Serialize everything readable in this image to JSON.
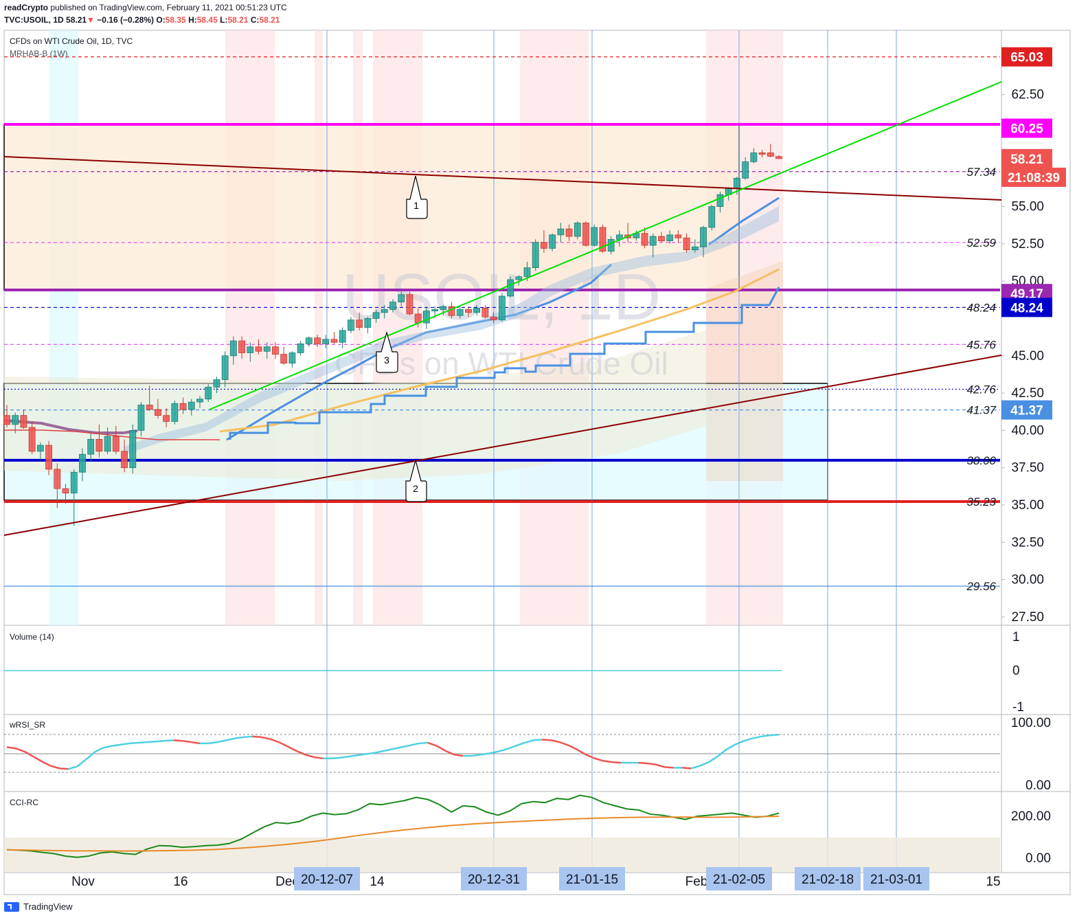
{
  "header": {
    "publisher": "readCrypto",
    "published_on": "published on TradingView.com, February 11, 2021 00:51:23 UTC",
    "symbol": "TVC:USOIL, 1D",
    "last": "58.21",
    "change_arrow": "▼",
    "change": "−0.16 (−0.28%)",
    "ohlc_o_label": "O:",
    "ohlc_o": "58.35",
    "ohlc_h_label": "H:",
    "ohlc_h": "58.45",
    "ohlc_l_label": "L:",
    "ohlc_l": "58.21",
    "ohlc_c_label": "C:",
    "ohlc_c": "58.21"
  },
  "main_legend": {
    "title": "CFDs on WTI Crude Oil, 1D, TVC",
    "indicator": "MRHAB-B (1W)"
  },
  "watermark": {
    "symbol": "USOIL, 1D",
    "name": "CFDs on WTI Crude Oil"
  },
  "colors": {
    "up": "#26a69a",
    "down": "#ef5350",
    "trendline": "#8b0000",
    "green_line": "#00e000",
    "ma_blue": "#4a90e2",
    "ma_orange": "#f5b942",
    "magenta": "#ff00ff",
    "purple": "#9c27b0",
    "navy": "#0000cc",
    "red": "#e02020",
    "box_fill": "#fdebd6",
    "cyan_fill": "#e0fbff"
  },
  "chart_data": [
    {
      "type": "candlestick",
      "title": "CFDs on WTI Crude Oil, 1D, TVC",
      "y_axis_ticks": [
        "62.50",
        "55.00",
        "52.50",
        "50.00",
        "45.00",
        "42.50",
        "40.00",
        "37.50",
        "35.00",
        "32.50",
        "30.00",
        "27.50"
      ],
      "ylim": [
        26.5,
        66.5
      ],
      "x_axis_ticks": [
        "Nov",
        "16",
        "Dec",
        "14",
        "Feb",
        "15"
      ],
      "x_axis_highlighted": [
        "20-12-07",
        "20-12-31",
        "21-01-15",
        "21-02-05",
        "21-02-18",
        "21-03-01"
      ],
      "price_badges": [
        {
          "label": "65.03",
          "value": 65.03,
          "color": "#e02020"
        },
        {
          "label": "60.25",
          "value": 60.25,
          "color": "#ff00ff"
        },
        {
          "label": "58.21",
          "value": 58.21,
          "color": "#ef5350"
        },
        {
          "label": "21:08:39",
          "value": 55.9,
          "color": "#ef5350"
        },
        {
          "label": "49.17",
          "value": 49.17,
          "color": "#9c27b0"
        },
        {
          "label": "48.24",
          "value": 48.24,
          "color": "#0000cc"
        },
        {
          "label": "41.37",
          "value": 41.37,
          "color": "#4a90e2"
        }
      ],
      "horizontal_levels": [
        {
          "label": "",
          "value": 65.03,
          "style": "dashed",
          "color": "#e02020"
        },
        {
          "label": "57.34",
          "value": 57.34,
          "style": "dashed",
          "color": "#9c27b0"
        },
        {
          "label": "52.59",
          "value": 52.59,
          "style": "dashed",
          "color": "#e040fb"
        },
        {
          "label": "48.24",
          "value": 48.24,
          "style": "dashed",
          "color": "#0000cc"
        },
        {
          "label": "45.76",
          "value": 45.76,
          "style": "dashed",
          "color": "#e040fb"
        },
        {
          "label": "42.76",
          "value": 42.76,
          "style": "dotted",
          "color": "#0000cc"
        },
        {
          "label": "41.37",
          "value": 41.37,
          "style": "dashed",
          "color": "#4a90e2"
        },
        {
          "label": "38.00",
          "value": 38.0,
          "style": "solid",
          "color": "#0000cc"
        },
        {
          "label": "35.23",
          "value": 35.23,
          "style": "solid",
          "color": "#e02020"
        },
        {
          "label": "29.56",
          "value": 29.56,
          "style": "solid",
          "color": "#4a90e2"
        }
      ],
      "callouts": [
        "1",
        "2",
        "3"
      ],
      "candles": [
        [
          41.0,
          41.7,
          40.2,
          40.4
        ],
        [
          40.4,
          41.2,
          39.8,
          41.0
        ],
        [
          41.0,
          41.4,
          40.1,
          40.2
        ],
        [
          40.2,
          40.6,
          38.4,
          38.6
        ],
        [
          38.6,
          39.2,
          38.0,
          39.0
        ],
        [
          39.0,
          39.3,
          37.0,
          37.4
        ],
        [
          37.4,
          37.8,
          34.8,
          36.1
        ],
        [
          36.1,
          36.4,
          35.1,
          35.8
        ],
        [
          35.8,
          37.4,
          33.6,
          37.2
        ],
        [
          37.2,
          38.8,
          36.6,
          38.4
        ],
        [
          38.4,
          39.8,
          37.9,
          39.4
        ],
        [
          39.4,
          40.4,
          38.2,
          38.6
        ],
        [
          38.6,
          40.2,
          38.4,
          39.6
        ],
        [
          39.6,
          40.3,
          38.4,
          38.6
        ],
        [
          38.6,
          39.4,
          37.2,
          37.5
        ],
        [
          37.5,
          40.4,
          37.1,
          40.0
        ],
        [
          40.0,
          41.9,
          39.6,
          41.7
        ],
        [
          41.7,
          43.0,
          41.3,
          41.4
        ],
        [
          41.4,
          42.1,
          40.8,
          41.0
        ],
        [
          41.0,
          41.5,
          40.2,
          40.6
        ],
        [
          40.6,
          42.0,
          40.4,
          41.8
        ],
        [
          41.8,
          42.2,
          41.1,
          41.4
        ],
        [
          41.4,
          42.1,
          41.0,
          41.9
        ],
        [
          41.9,
          42.3,
          41.5,
          42.1
        ],
        [
          42.1,
          43.1,
          41.9,
          42.9
        ],
        [
          42.9,
          43.6,
          42.5,
          43.4
        ],
        [
          43.4,
          45.3,
          42.9,
          45.0
        ],
        [
          45.0,
          46.3,
          44.4,
          46.0
        ],
        [
          46.0,
          46.3,
          44.8,
          45.2
        ],
        [
          45.2,
          45.9,
          44.6,
          45.6
        ],
        [
          45.6,
          46.1,
          45.1,
          45.3
        ],
        [
          45.3,
          45.9,
          44.8,
          45.6
        ],
        [
          45.6,
          45.9,
          44.8,
          45.1
        ],
        [
          45.1,
          45.6,
          44.4,
          44.5
        ],
        [
          44.5,
          45.3,
          44.2,
          45.2
        ],
        [
          45.2,
          46.0,
          45.0,
          45.8
        ],
        [
          45.8,
          46.3,
          45.6,
          46.2
        ],
        [
          46.2,
          46.4,
          45.6,
          45.8
        ],
        [
          45.8,
          46.4,
          45.5,
          46.1
        ],
        [
          46.1,
          46.6,
          45.8,
          45.9
        ],
        [
          45.9,
          46.9,
          45.5,
          46.7
        ],
        [
          46.7,
          47.6,
          46.5,
          47.4
        ],
        [
          47.4,
          47.9,
          46.7,
          46.9
        ],
        [
          46.9,
          47.6,
          46.5,
          47.5
        ],
        [
          47.5,
          48.1,
          47.2,
          47.9
        ],
        [
          47.9,
          48.4,
          47.5,
          48.1
        ],
        [
          48.1,
          48.8,
          47.9,
          48.6
        ],
        [
          48.6,
          49.3,
          48.3,
          49.1
        ],
        [
          49.1,
          49.3,
          47.7,
          47.8
        ],
        [
          47.8,
          48.2,
          46.9,
          47.2
        ],
        [
          47.2,
          48.2,
          46.8,
          48.0
        ],
        [
          48.0,
          48.3,
          47.5,
          48.1
        ],
        [
          48.1,
          48.4,
          47.7,
          48.3
        ],
        [
          48.3,
          48.6,
          47.5,
          47.7
        ],
        [
          47.7,
          48.3,
          47.5,
          48.1
        ],
        [
          48.1,
          48.3,
          47.6,
          47.9
        ],
        [
          47.9,
          48.4,
          47.7,
          48.2
        ],
        [
          48.2,
          48.4,
          47.5,
          47.6
        ],
        [
          47.6,
          47.9,
          47.2,
          47.4
        ],
        [
          47.4,
          49.2,
          47.3,
          49.0
        ],
        [
          49.0,
          50.3,
          48.9,
          50.1
        ],
        [
          50.1,
          50.4,
          49.7,
          50.3
        ],
        [
          50.3,
          51.3,
          50.0,
          50.9
        ],
        [
          50.9,
          52.8,
          50.7,
          52.6
        ],
        [
          52.6,
          53.4,
          51.9,
          52.2
        ],
        [
          52.2,
          53.2,
          52.0,
          53.1
        ],
        [
          53.1,
          53.9,
          52.6,
          53.5
        ],
        [
          53.5,
          53.8,
          52.7,
          53.0
        ],
        [
          53.0,
          54.0,
          52.8,
          53.9
        ],
        [
          53.9,
          54.0,
          52.3,
          52.4
        ],
        [
          52.4,
          53.8,
          52.3,
          53.6
        ],
        [
          53.6,
          53.8,
          51.9,
          52.0
        ],
        [
          52.0,
          53.0,
          51.8,
          52.8
        ],
        [
          52.8,
          53.4,
          52.3,
          53.1
        ],
        [
          53.1,
          53.9,
          52.6,
          52.9
        ],
        [
          52.9,
          53.4,
          52.7,
          53.2
        ],
        [
          53.2,
          53.6,
          52.2,
          52.4
        ],
        [
          52.4,
          53.2,
          51.6,
          53.0
        ],
        [
          53.0,
          53.3,
          52.6,
          52.7
        ],
        [
          52.7,
          53.4,
          52.5,
          53.1
        ],
        [
          53.1,
          53.4,
          52.6,
          52.9
        ],
        [
          52.9,
          53.2,
          51.9,
          52.1
        ],
        [
          52.1,
          52.8,
          51.9,
          52.3
        ],
        [
          52.3,
          53.7,
          51.6,
          53.6
        ],
        [
          53.6,
          55.1,
          53.4,
          55.0
        ],
        [
          55.0,
          56.0,
          54.6,
          55.8
        ],
        [
          55.8,
          56.3,
          55.4,
          56.2
        ],
        [
          56.2,
          57.0,
          55.8,
          56.9
        ],
        [
          56.9,
          58.3,
          56.8,
          58.0
        ],
        [
          58.0,
          58.9,
          57.9,
          58.6
        ],
        [
          58.6,
          58.8,
          58.3,
          58.5
        ],
        [
          58.6,
          59.2,
          58.3,
          58.37
        ],
        [
          58.35,
          58.45,
          58.21,
          58.21
        ]
      ]
    },
    {
      "type": "line",
      "title": "Volume (14)",
      "y_axis_ticks": [
        "1",
        "0",
        "-1"
      ],
      "values": [
        0
      ]
    },
    {
      "type": "line",
      "title": "wRSI_SR",
      "y_axis_ticks": [
        "100.00",
        "0.00"
      ],
      "ylim": [
        -10,
        110
      ],
      "series": [
        {
          "values": [
            60,
            58,
            53,
            45,
            37,
            30,
            26,
            25,
            29,
            40,
            52,
            59,
            62,
            64,
            66,
            67,
            68,
            69,
            70,
            71,
            70,
            68,
            66,
            66,
            68,
            71,
            74,
            76,
            77,
            76,
            73,
            68,
            61,
            54,
            48,
            44,
            42,
            42,
            43,
            45,
            47,
            49,
            51,
            54,
            57,
            60,
            63,
            66,
            67,
            62,
            54,
            48,
            46,
            46,
            48,
            50,
            53,
            57,
            62,
            67,
            71,
            72,
            71,
            68,
            63,
            56,
            48,
            42,
            38,
            36,
            35,
            35,
            35,
            34,
            32,
            28,
            27,
            27,
            26,
            30,
            36,
            45,
            56,
            64,
            70,
            74,
            77,
            79,
            80
          ]
        }
      ]
    },
    {
      "type": "line",
      "title": "CCI-RC",
      "y_axis_ticks": [
        "200.00",
        "0.00"
      ],
      "ylim": [
        -20,
        320
      ],
      "series": [
        {
          "values": [
            40,
            38,
            35,
            28,
            22,
            10,
            4,
            10,
            25,
            30,
            22,
            18,
            44,
            60,
            58,
            52,
            55,
            60,
            62,
            70,
            90,
            120,
            150,
            170,
            165,
            175,
            200,
            215,
            208,
            212,
            230,
            260,
            255,
            265,
            275,
            290,
            280,
            255,
            220,
            250,
            245,
            220,
            205,
            225,
            260,
            270,
            265,
            285,
            280,
            300,
            290,
            265,
            250,
            235,
            230,
            210,
            205,
            195,
            185,
            200,
            205,
            210,
            215,
            205,
            195,
            200,
            215
          ]
        },
        {
          "values": [
            40,
            38,
            36,
            35,
            35,
            34,
            35,
            36,
            38,
            42,
            48,
            56,
            66,
            78,
            92,
            108,
            122,
            135,
            146,
            156,
            164,
            170,
            176,
            181,
            186,
            190,
            193,
            195,
            196,
            196,
            195,
            196,
            198,
            200
          ]
        }
      ]
    }
  ]
}
